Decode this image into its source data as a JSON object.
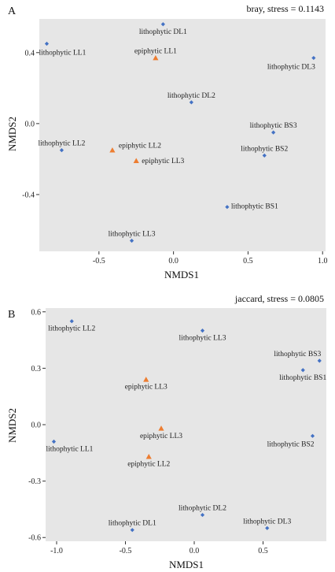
{
  "chart_data": [
    {
      "type": "scatter",
      "panel": "A",
      "annotation": "bray, stress = 0.1143",
      "xlabel": "NMDS1",
      "ylabel": "NMDS2",
      "xlim": [
        -0.9,
        1.02
      ],
      "ylim": [
        -0.72,
        0.59
      ],
      "xticks": [
        -0.5,
        0.0,
        0.5,
        1.0
      ],
      "xtick_labels": [
        "-0.5",
        "0.0",
        "0.5",
        "1.0"
      ],
      "yticks": [
        -0.4,
        0.0,
        0.4
      ],
      "ytick_labels": [
        "-0.4",
        "0.0",
        "0.4"
      ],
      "series": [
        {
          "marker": "diamond",
          "color": "#4472c4",
          "points": [
            {
              "x": -0.07,
              "y": 0.56,
              "label": "lithophytic DL1"
            },
            {
              "x": -0.85,
              "y": 0.45,
              "label": "lithophytic LL1"
            },
            {
              "x": 0.94,
              "y": 0.37,
              "label": "lithophytic DL3"
            },
            {
              "x": 0.12,
              "y": 0.12,
              "label": "lithophytic DL2"
            },
            {
              "x": 0.67,
              "y": -0.05,
              "label": "lithophytic BS3"
            },
            {
              "x": -0.75,
              "y": -0.15,
              "label": "lithophytic LL2"
            },
            {
              "x": 0.61,
              "y": -0.18,
              "label": "lithophytic BS2"
            },
            {
              "x": 0.36,
              "y": -0.47,
              "label": "lithophytic BS1"
            },
            {
              "x": -0.28,
              "y": -0.66,
              "label": "lithophytic LL3"
            }
          ]
        },
        {
          "marker": "triangle",
          "color": "#ed7d31",
          "points": [
            {
              "x": -0.12,
              "y": 0.37,
              "label": "epiphytic LL1"
            },
            {
              "x": -0.41,
              "y": -0.15,
              "label": "epiphytic LL2"
            },
            {
              "x": -0.25,
              "y": -0.21,
              "label": "epiphytic LL3"
            }
          ]
        }
      ]
    },
    {
      "type": "scatter",
      "panel": "B",
      "annotation": "jaccard, stress = 0.0805",
      "xlabel": "NMDS1",
      "ylabel": "NMDS2",
      "xlim": [
        -1.08,
        0.96
      ],
      "ylim": [
        -0.62,
        0.62
      ],
      "xticks": [
        -1.0,
        -0.5,
        0.0,
        0.5
      ],
      "xtick_labels": [
        "-1.0",
        "-0.5",
        "0.0",
        "0.5"
      ],
      "yticks": [
        -0.6,
        -0.3,
        0.0,
        0.3,
        0.6
      ],
      "ytick_labels": [
        "-0.6",
        "-0.3",
        "0.0",
        "0.3",
        "0.6"
      ],
      "series": [
        {
          "marker": "diamond",
          "color": "#4472c4",
          "points": [
            {
              "x": -0.89,
              "y": 0.55,
              "label": "lithophytic LL2"
            },
            {
              "x": 0.06,
              "y": 0.5,
              "label": "lithophytic LL3"
            },
            {
              "x": 0.91,
              "y": 0.34,
              "label": "lithophytic BS3"
            },
            {
              "x": 0.79,
              "y": 0.29,
              "label": "lithophytic BS1"
            },
            {
              "x": -1.02,
              "y": -0.09,
              "label": "lithophytic LL1"
            },
            {
              "x": 0.86,
              "y": -0.06,
              "label": "lithophytic BS2"
            },
            {
              "x": 0.06,
              "y": -0.48,
              "label": "lithophytic DL2"
            },
            {
              "x": 0.53,
              "y": -0.55,
              "label": "lithophytic DL3"
            },
            {
              "x": -0.45,
              "y": -0.56,
              "label": "lithophytic DL1"
            }
          ]
        },
        {
          "marker": "triangle",
          "color": "#ed7d31",
          "points": [
            {
              "x": -0.35,
              "y": 0.24,
              "label": "epiphytic LL3"
            },
            {
              "x": -0.24,
              "y": -0.02,
              "label": "epiphytic LL3"
            },
            {
              "x": -0.33,
              "y": -0.17,
              "label": "epiphytic LL2"
            }
          ]
        }
      ]
    }
  ]
}
